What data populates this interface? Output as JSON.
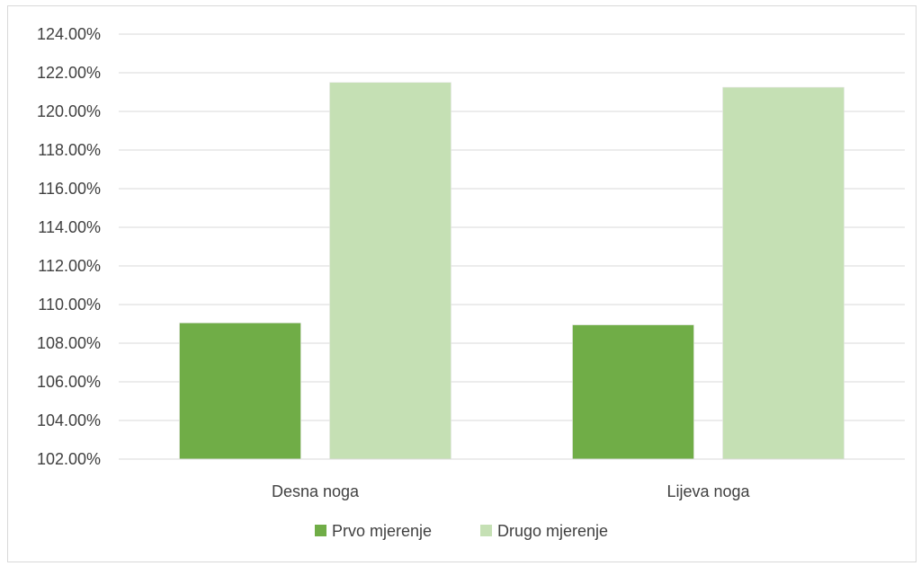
{
  "chart_data": {
    "type": "bar",
    "categories": [
      "Desna noga",
      "Lijeva noga"
    ],
    "series": [
      {
        "name": "Prvo mjerenje",
        "values": [
          109.05,
          108.95
        ],
        "color": "#70ad47"
      },
      {
        "name": "Drugo mjerenje",
        "values": [
          121.5,
          121.25
        ],
        "color": "#c5e0b4"
      }
    ],
    "ylim": [
      102,
      124
    ],
    "yticks": [
      102,
      104,
      106,
      108,
      110,
      112,
      114,
      116,
      118,
      120,
      122,
      124
    ],
    "ytick_labels": [
      "102.00%",
      "104.00%",
      "106.00%",
      "108.00%",
      "110.00%",
      "112.00%",
      "114.00%",
      "116.00%",
      "118.00%",
      "120.00%",
      "122.00%",
      "124.00%"
    ],
    "grid": true,
    "legend": "bottom-center",
    "title": "",
    "xlabel": "",
    "ylabel": ""
  }
}
